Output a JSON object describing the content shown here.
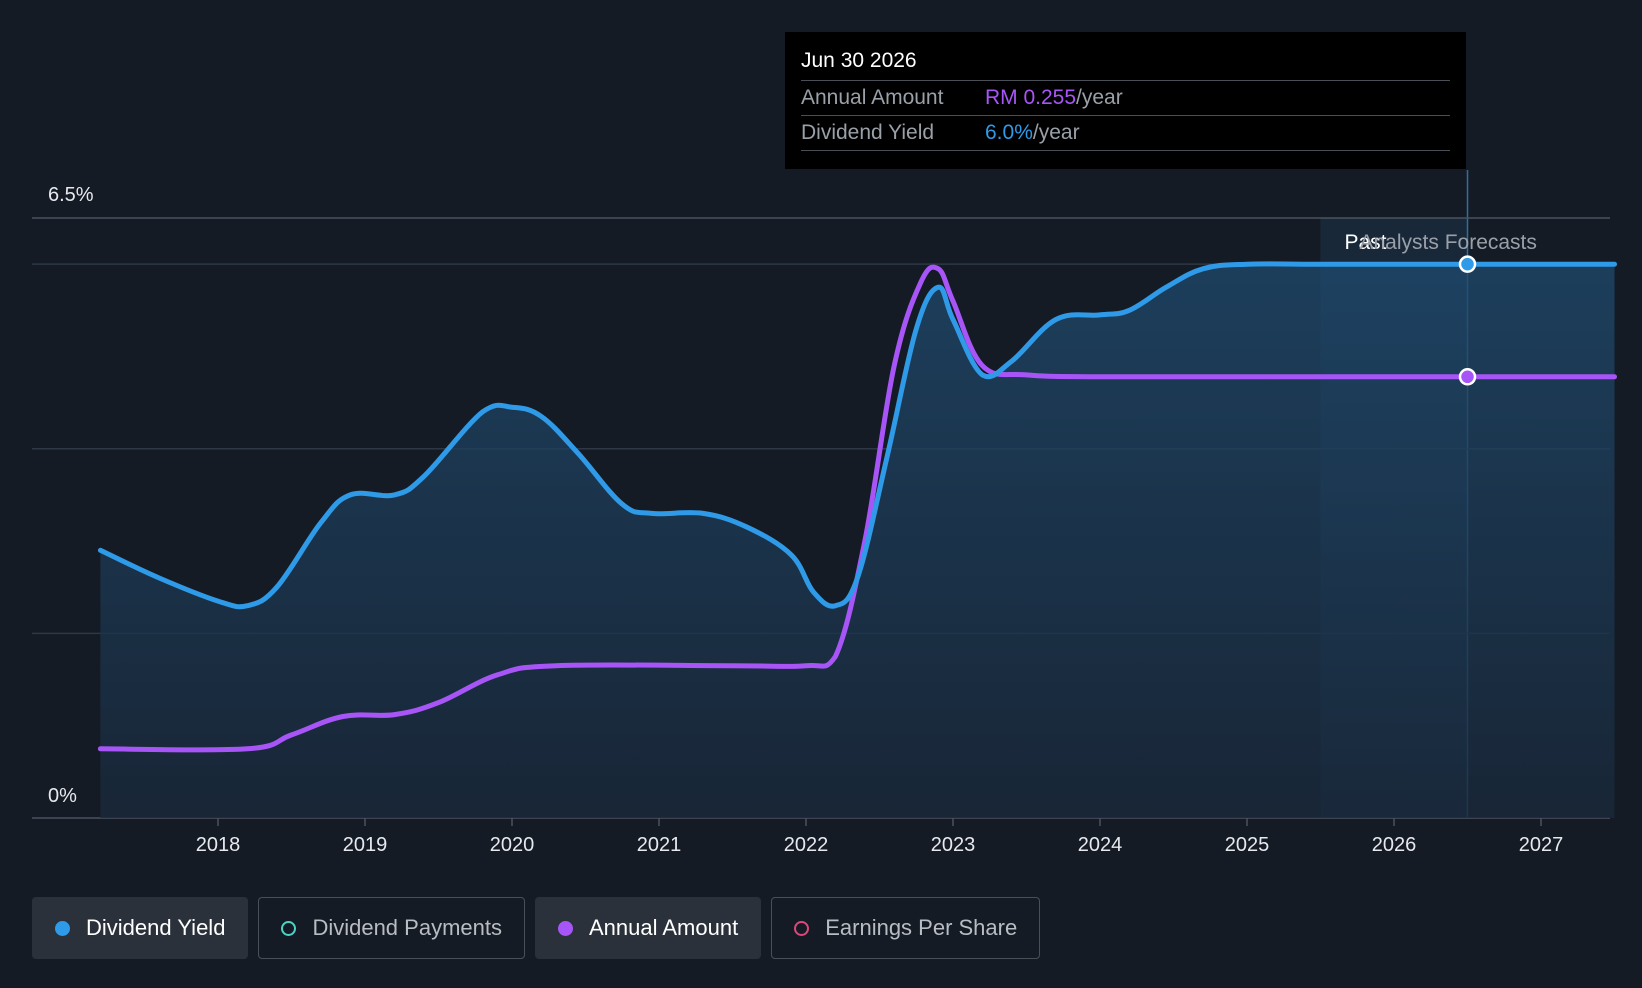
{
  "tooltip": {
    "date": "Jun 30 2026",
    "rows": [
      {
        "label": "Annual Amount",
        "value": "RM 0.255",
        "unit": "/year"
      },
      {
        "label": "Dividend Yield",
        "value": "6.0%",
        "unit": "/year"
      }
    ]
  },
  "legend": [
    {
      "label": "Dividend Yield",
      "color": "#2f9ae8",
      "active": true,
      "filled": true
    },
    {
      "label": "Dividend Payments",
      "color": "#4fd1c5",
      "active": false,
      "filled": false
    },
    {
      "label": "Annual Amount",
      "color": "#a855f7",
      "active": true,
      "filled": true
    },
    {
      "label": "Earnings Per Share",
      "color": "#e0457b",
      "active": false,
      "filled": false
    }
  ],
  "chart_data": {
    "type": "line",
    "y_tick_labels": [
      "6.5%",
      "0%"
    ],
    "ylim": [
      0,
      6.5
    ],
    "xlim": [
      2016.77,
      2027.5
    ],
    "x_ticks": [
      2018,
      2019,
      2020,
      2021,
      2022,
      2023,
      2024,
      2025,
      2026,
      2027
    ],
    "x_tick_labels": [
      "2018",
      "2019",
      "2020",
      "2021",
      "2022",
      "2023",
      "2024",
      "2025",
      "2026",
      "2027"
    ],
    "grid": true,
    "region_labels": {
      "past": "Past",
      "forecast": "Analysts Forecasts"
    },
    "past_end_x": 2025.5,
    "forecast_band_end_x": 2026.5,
    "highlight_x": 2026.5,
    "colors": {
      "yield": "#2f9ae8",
      "amount": "#a855f7"
    },
    "series": [
      {
        "name": "Dividend Yield",
        "unit": "%",
        "points": [
          [
            2017.2,
            2.9
          ],
          [
            2017.6,
            2.6
          ],
          [
            2018.0,
            2.35
          ],
          [
            2018.2,
            2.3
          ],
          [
            2018.4,
            2.5
          ],
          [
            2018.7,
            3.2
          ],
          [
            2018.9,
            3.5
          ],
          [
            2019.2,
            3.5
          ],
          [
            2019.4,
            3.7
          ],
          [
            2019.8,
            4.4
          ],
          [
            2020.0,
            4.45
          ],
          [
            2020.2,
            4.35
          ],
          [
            2020.45,
            3.95
          ],
          [
            2020.75,
            3.4
          ],
          [
            2020.95,
            3.3
          ],
          [
            2021.3,
            3.3
          ],
          [
            2021.6,
            3.15
          ],
          [
            2021.9,
            2.85
          ],
          [
            2022.05,
            2.45
          ],
          [
            2022.2,
            2.3
          ],
          [
            2022.35,
            2.6
          ],
          [
            2022.55,
            3.9
          ],
          [
            2022.75,
            5.3
          ],
          [
            2022.9,
            5.75
          ],
          [
            2023.0,
            5.4
          ],
          [
            2023.2,
            4.8
          ],
          [
            2023.4,
            4.95
          ],
          [
            2023.7,
            5.4
          ],
          [
            2024.0,
            5.45
          ],
          [
            2024.2,
            5.5
          ],
          [
            2024.45,
            5.75
          ],
          [
            2024.7,
            5.95
          ],
          [
            2025.0,
            6.0
          ],
          [
            2025.5,
            6.0
          ],
          [
            2026.5,
            6.0
          ],
          [
            2027.5,
            6.0
          ]
        ]
      },
      {
        "name": "Annual Amount",
        "unit": "% scale",
        "points": [
          [
            2017.2,
            0.75
          ],
          [
            2018.2,
            0.75
          ],
          [
            2018.5,
            0.9
          ],
          [
            2018.85,
            1.1
          ],
          [
            2019.2,
            1.12
          ],
          [
            2019.5,
            1.25
          ],
          [
            2019.9,
            1.55
          ],
          [
            2020.3,
            1.65
          ],
          [
            2021.5,
            1.65
          ],
          [
            2022.0,
            1.65
          ],
          [
            2022.2,
            1.75
          ],
          [
            2022.4,
            3.0
          ],
          [
            2022.6,
            4.9
          ],
          [
            2022.78,
            5.8
          ],
          [
            2022.9,
            5.95
          ],
          [
            2023.0,
            5.6
          ],
          [
            2023.2,
            4.9
          ],
          [
            2023.5,
            4.8
          ],
          [
            2024.0,
            4.78
          ],
          [
            2025.0,
            4.78
          ],
          [
            2026.5,
            4.78
          ],
          [
            2027.5,
            4.78
          ]
        ]
      }
    ]
  }
}
